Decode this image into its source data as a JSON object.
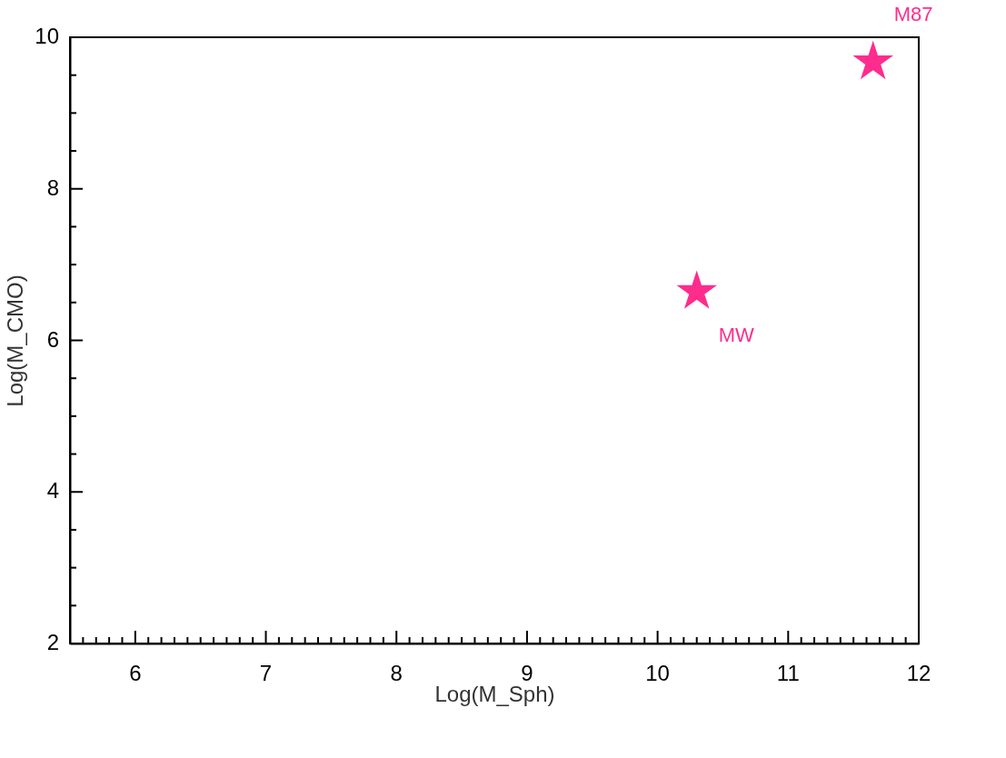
{
  "chart_data": {
    "type": "scatter",
    "xlabel": "Log(M_Sph)",
    "ylabel": "Log(M_CMO)",
    "x": [
      11.65,
      10.3
    ],
    "series": [
      {
        "color": "#fe2c8c",
        "values": [
          9.7,
          6.67
        ]
      }
    ],
    "marker": "star",
    "annotations": [
      {
        "text": "M87",
        "x": 11.65,
        "y": 9.7
      },
      {
        "text": "MW",
        "x": 10.3,
        "y": 6.67
      }
    ],
    "xlim": [
      5.5,
      12
    ],
    "ylim": [
      2,
      10
    ],
    "xticks": [
      {
        "value": 5.5,
        "label": null
      },
      {
        "value": 5.6,
        "label": null
      },
      {
        "value": 5.7,
        "label": null
      },
      {
        "value": 5.8,
        "label": null
      },
      {
        "value": 5.9,
        "label": null
      },
      6,
      {
        "value": 6.1,
        "label": null
      },
      {
        "value": 6.2,
        "label": null
      },
      {
        "value": 6.3,
        "label": null
      },
      {
        "value": 6.4,
        "label": null
      },
      {
        "value": 6.5,
        "label": null
      },
      {
        "value": 6.6,
        "label": null
      },
      {
        "value": 6.7,
        "label": null
      },
      {
        "value": 6.8,
        "label": null
      },
      {
        "value": 6.9,
        "label": null
      },
      7,
      {
        "value": 7.1,
        "label": null
      },
      {
        "value": 7.2,
        "label": null
      },
      {
        "value": 7.3,
        "label": null
      },
      {
        "value": 7.4,
        "label": null
      },
      {
        "value": 7.5,
        "label": null
      },
      {
        "value": 7.6,
        "label": null
      },
      {
        "value": 7.7,
        "label": null
      },
      {
        "value": 7.8,
        "label": null
      },
      {
        "value": 7.9,
        "label": null
      },
      8,
      {
        "value": 8.1,
        "label": null
      },
      {
        "value": 8.2,
        "label": null
      },
      {
        "value": 8.3,
        "label": null
      },
      {
        "value": 8.4,
        "label": null
      },
      {
        "value": 8.5,
        "label": null
      },
      {
        "value": 8.6,
        "label": null
      },
      {
        "value": 8.7,
        "label": null
      },
      {
        "value": 8.8,
        "label": null
      },
      {
        "value": 8.9,
        "label": null
      },
      9,
      {
        "value": 9.1,
        "label": null
      },
      {
        "value": 9.2,
        "label": null
      },
      {
        "value": 9.3,
        "label": null
      },
      {
        "value": 9.4,
        "label": null
      },
      {
        "value": 9.5,
        "label": null
      },
      {
        "value": 9.6,
        "label": null
      },
      {
        "value": 9.7,
        "label": null
      },
      {
        "value": 9.8,
        "label": null
      },
      {
        "value": 9.9,
        "label": null
      },
      10,
      {
        "value": 10.1,
        "label": null
      },
      {
        "value": 10.2,
        "label": null
      },
      {
        "value": 10.3,
        "label": null
      },
      {
        "value": 10.4,
        "label": null
      },
      {
        "value": 10.5,
        "label": null
      },
      {
        "value": 10.6,
        "label": null
      },
      {
        "value": 10.7,
        "label": null
      },
      {
        "value": 10.8,
        "label": null
      },
      {
        "value": 10.9,
        "label": null
      },
      11,
      {
        "value": 11.1,
        "label": null
      },
      {
        "value": 11.2,
        "label": null
      },
      {
        "value": 11.3,
        "label": null
      },
      {
        "value": 11.4,
        "label": null
      },
      {
        "value": 11.5,
        "label": null
      },
      {
        "value": 11.6,
        "label": null
      },
      {
        "value": 11.7,
        "label": null
      },
      {
        "value": 11.8,
        "label": null
      },
      {
        "value": 11.9,
        "label": null
      },
      12
    ],
    "yticks": [
      2,
      {
        "value": 2.5,
        "label": null
      },
      {
        "value": 3,
        "label": null
      },
      {
        "value": 3.5,
        "label": null
      },
      4,
      {
        "value": 4.5,
        "label": null
      },
      {
        "value": 5,
        "label": null
      },
      {
        "value": 5.5,
        "label": null
      },
      6,
      {
        "value": 6.5,
        "label": null
      },
      {
        "value": 7,
        "label": null
      },
      {
        "value": 7.5,
        "label": null
      },
      8,
      {
        "value": 8.5,
        "label": null
      },
      {
        "value": 9,
        "label": null
      },
      {
        "value": 9.5,
        "label": null
      },
      10
    ],
    "grid": false
  }
}
